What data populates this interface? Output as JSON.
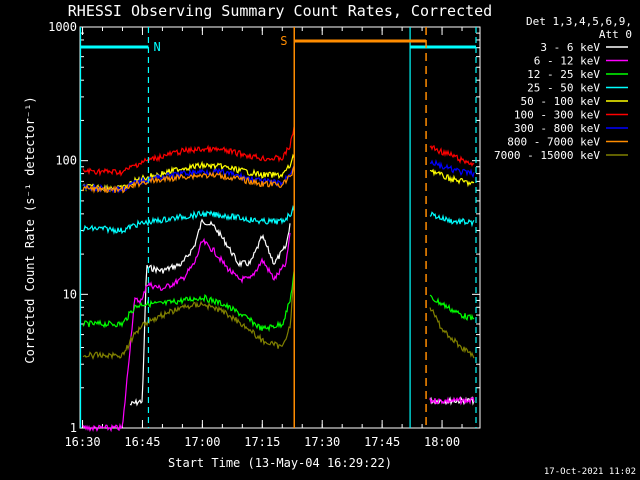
{
  "chart_data": {
    "type": "line",
    "title": "RHESSI Observing Summary Count Rates, Corrected",
    "xlabel": "Start Time (13-May-04 16:29:22)",
    "ylabel": "Corrected Count Rate (s⁻¹ detector⁻¹)",
    "y_scale": "log",
    "ylim": [
      1,
      1000
    ],
    "xlim": [
      "16:29:22",
      "18:09:30"
    ],
    "x_ticks": [
      "16:30",
      "16:45",
      "17:00",
      "17:15",
      "17:30",
      "17:45",
      "18:00"
    ],
    "y_ticks": [
      "1",
      "10",
      "100",
      "1000"
    ],
    "legend_header": [
      "Det 1,3,4,5,6,9,",
      "Att 0"
    ],
    "legend_position": "right",
    "footer_date": "17-Oct-2021 11:02",
    "markers": {
      "night_label": "N",
      "saa_label": "S",
      "night_spans": [
        [
          "16:29:30",
          "16:46:30"
        ],
        [
          "17:52:00",
          "18:08:30"
        ]
      ],
      "saa_span": [
        "17:23:00",
        "17:56:00"
      ]
    },
    "series": [
      {
        "name": "3 - 6 keV",
        "color": "#ffffff",
        "x": [
          "16:42",
          "16:45",
          "16:46",
          "16:50",
          "16:55",
          "16:58",
          "17:00",
          "17:03",
          "17:06",
          "17:09",
          "17:12",
          "17:15",
          "17:18",
          "17:21",
          "17:22",
          "17:57",
          "18:00",
          "18:03",
          "18:05",
          "18:08"
        ],
        "y": [
          1.5,
          1.6,
          16,
          15,
          17,
          23,
          36,
          32,
          24,
          17,
          17,
          27,
          17,
          23,
          35,
          1.6,
          1.6,
          1.6,
          1.6,
          1.6
        ]
      },
      {
        "name": "6 - 12 keV",
        "color": "#ff00ff",
        "x": [
          "16:30",
          "16:40",
          "16:43",
          "16:45",
          "16:46",
          "16:50",
          "16:55",
          "16:58",
          "17:00",
          "17:03",
          "17:06",
          "17:09",
          "17:12",
          "17:15",
          "17:18",
          "17:21",
          "17:22",
          "17:57",
          "18:00",
          "18:03",
          "18:05",
          "18:08"
        ],
        "y": [
          1,
          1,
          9,
          9,
          12,
          11,
          13,
          17,
          25,
          21,
          16,
          13,
          13,
          18,
          13,
          17,
          30,
          1.6,
          1.6,
          1.6,
          1.6,
          1.6
        ]
      },
      {
        "name": "12 - 25 keV",
        "color": "#00ff00",
        "x": [
          "16:30",
          "16:35",
          "16:40",
          "16:43",
          "16:45",
          "16:50",
          "16:55",
          "17:00",
          "17:05",
          "17:10",
          "17:15",
          "17:20",
          "17:22",
          "17:23",
          "17:57",
          "18:00",
          "18:03",
          "18:05",
          "18:08"
        ],
        "y": [
          6,
          6,
          6,
          8,
          8.5,
          8.5,
          9,
          9.5,
          8.5,
          7,
          5.5,
          6,
          9,
          15,
          9.5,
          8.5,
          7.5,
          7,
          6.5
        ]
      },
      {
        "name": "25 - 50 keV",
        "color": "#00ffff",
        "x": [
          "16:30",
          "16:35",
          "16:40",
          "16:43",
          "16:45",
          "16:50",
          "16:55",
          "17:00",
          "17:05",
          "17:10",
          "17:15",
          "17:20",
          "17:22",
          "17:23",
          "17:57",
          "18:00",
          "18:03",
          "18:05",
          "18:08"
        ],
        "y": [
          31,
          31,
          30,
          33,
          34,
          36,
          38,
          40,
          39,
          37,
          35,
          35,
          40,
          44,
          40,
          37,
          35,
          35,
          34
        ]
      },
      {
        "name": "50 - 100 keV",
        "color": "#ffff00",
        "x": [
          "16:30",
          "16:35",
          "16:40",
          "16:43",
          "16:45",
          "16:50",
          "16:55",
          "17:00",
          "17:05",
          "17:10",
          "17:15",
          "17:20",
          "17:22",
          "17:23",
          "17:57",
          "18:00",
          "18:03",
          "18:05",
          "18:08"
        ],
        "y": [
          64,
          63,
          62,
          70,
          74,
          80,
          88,
          92,
          90,
          84,
          78,
          78,
          92,
          110,
          86,
          77,
          72,
          70,
          67
        ]
      },
      {
        "name": "100 - 300 keV",
        "color": "#ff0000",
        "x": [
          "16:30",
          "16:35",
          "16:40",
          "16:43",
          "16:45",
          "16:50",
          "16:55",
          "17:00",
          "17:05",
          "17:10",
          "17:15",
          "17:20",
          "17:22",
          "17:23",
          "17:57",
          "18:00",
          "18:03",
          "18:05",
          "18:08"
        ],
        "y": [
          84,
          83,
          82,
          92,
          98,
          108,
          118,
          122,
          120,
          112,
          104,
          104,
          130,
          180,
          128,
          116,
          108,
          100,
          95
        ]
      },
      {
        "name": "300 - 800 keV",
        "color": "#0000ff",
        "x": [
          "16:30",
          "16:35",
          "16:40",
          "16:43",
          "16:45",
          "16:50",
          "16:55",
          "17:00",
          "17:05",
          "17:10",
          "17:15",
          "17:20",
          "17:22",
          "17:23",
          "17:57",
          "18:00",
          "18:03",
          "18:05",
          "18:08"
        ],
        "y": [
          63,
          62,
          61,
          68,
          71,
          76,
          80,
          83,
          82,
          76,
          70,
          68,
          80,
          96,
          99,
          90,
          85,
          82,
          80
        ]
      },
      {
        "name": "800 - 7000 keV",
        "color": "#ff8c00",
        "x": [
          "16:30",
          "16:35",
          "16:40",
          "16:43",
          "16:45",
          "16:50",
          "16:55",
          "17:00",
          "17:05",
          "17:10",
          "17:15",
          "17:20",
          "17:22",
          "17:23"
        ],
        "y": [
          62,
          61,
          60,
          66,
          69,
          72,
          76,
          78,
          77,
          72,
          67,
          66,
          76,
          90
        ]
      },
      {
        "name": "7000 - 15000 keV",
        "color": "#808000",
        "x": [
          "16:30",
          "16:35",
          "16:40",
          "16:43",
          "16:45",
          "16:50",
          "16:55",
          "17:00",
          "17:05",
          "17:10",
          "17:15",
          "17:20",
          "17:22",
          "17:23",
          "17:57",
          "18:00",
          "18:03",
          "18:05",
          "18:08"
        ],
        "y": [
          3.5,
          3.5,
          3.5,
          5,
          6,
          7,
          8,
          8.5,
          7.5,
          6,
          4.5,
          4,
          6,
          14,
          8,
          5.5,
          4.5,
          4,
          3.5
        ]
      }
    ]
  }
}
